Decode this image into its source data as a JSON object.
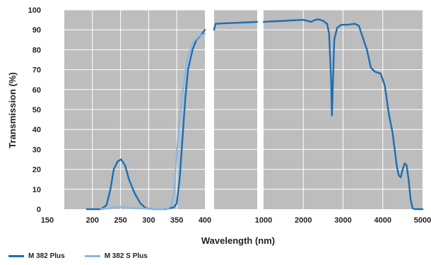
{
  "chart_data": {
    "type": "line",
    "xlabel": "Wavelength (nm)",
    "ylabel": "Transmission (%)",
    "ylim": [
      0,
      100
    ],
    "yticks": [
      0,
      10,
      20,
      30,
      40,
      50,
      60,
      70,
      80,
      90,
      100
    ],
    "panels": [
      {
        "xlim": [
          150,
          400
        ],
        "xticks": [
          150,
          200,
          250,
          300,
          350,
          400
        ],
        "xtick_labels": [
          "150",
          "200",
          "250",
          "300",
          "350",
          "400"
        ]
      },
      {
        "xlim": [
          400,
          1000
        ],
        "xticks": [],
        "xtick_labels": []
      },
      {
        "xlim": [
          1000,
          5000
        ],
        "xticks": [
          1000,
          2000,
          3000,
          4000,
          5000
        ],
        "xtick_labels": [
          "1000",
          "2000",
          "3000",
          "4000",
          "5000"
        ]
      }
    ],
    "grid": true,
    "legend_position": "bottom-left",
    "series": [
      {
        "name": "M 382 Plus",
        "color": "#1a6fb5",
        "points": [
          [
            190,
            0
          ],
          [
            215,
            0
          ],
          [
            225,
            2
          ],
          [
            232,
            10
          ],
          [
            238,
            20
          ],
          [
            245,
            24
          ],
          [
            251,
            25
          ],
          [
            258,
            22
          ],
          [
            265,
            15
          ],
          [
            275,
            8
          ],
          [
            285,
            3
          ],
          [
            295,
            0.5
          ],
          [
            310,
            0
          ],
          [
            330,
            0
          ],
          [
            345,
            1
          ],
          [
            350,
            3
          ],
          [
            355,
            15
          ],
          [
            360,
            35
          ],
          [
            365,
            55
          ],
          [
            370,
            70
          ],
          [
            378,
            80
          ],
          [
            385,
            85
          ],
          [
            395,
            88
          ],
          [
            400,
            90
          ],
          [
            420,
            93
          ],
          [
            500,
            93.2
          ],
          [
            700,
            93.5
          ],
          [
            900,
            93.8
          ],
          [
            1000,
            94
          ],
          [
            1500,
            94.5
          ],
          [
            2000,
            95
          ],
          [
            2200,
            94
          ],
          [
            2300,
            95
          ],
          [
            2400,
            95.2
          ],
          [
            2500,
            94.5
          ],
          [
            2600,
            93
          ],
          [
            2650,
            88
          ],
          [
            2700,
            65
          ],
          [
            2720,
            47
          ],
          [
            2740,
            60
          ],
          [
            2780,
            85
          ],
          [
            2850,
            91
          ],
          [
            2950,
            92.5
          ],
          [
            3100,
            92.5
          ],
          [
            3300,
            93
          ],
          [
            3400,
            92
          ],
          [
            3500,
            86
          ],
          [
            3600,
            80
          ],
          [
            3700,
            71
          ],
          [
            3800,
            69
          ],
          [
            3950,
            68
          ],
          [
            4050,
            62
          ],
          [
            4150,
            48
          ],
          [
            4250,
            38
          ],
          [
            4300,
            30
          ],
          [
            4350,
            22
          ],
          [
            4400,
            17
          ],
          [
            4450,
            16
          ],
          [
            4500,
            20
          ],
          [
            4550,
            23
          ],
          [
            4600,
            22
          ],
          [
            4650,
            15
          ],
          [
            4700,
            5
          ],
          [
            4750,
            0.5
          ],
          [
            4800,
            0
          ],
          [
            5000,
            0
          ]
        ]
      },
      {
        "name": "M 382 S Plus",
        "color": "#8db6e0",
        "points": [
          [
            215,
            0
          ],
          [
            230,
            0.5
          ],
          [
            240,
            1
          ],
          [
            250,
            1.2
          ],
          [
            260,
            1
          ],
          [
            275,
            0.5
          ],
          [
            300,
            0.2
          ],
          [
            325,
            0
          ],
          [
            335,
            0.5
          ],
          [
            340,
            2
          ],
          [
            345,
            8
          ],
          [
            350,
            28
          ],
          [
            355,
            45
          ],
          [
            360,
            58
          ],
          [
            365,
            68
          ],
          [
            370,
            77
          ],
          [
            380,
            84
          ],
          [
            390,
            87
          ],
          [
            400,
            88
          ]
        ]
      }
    ]
  }
}
